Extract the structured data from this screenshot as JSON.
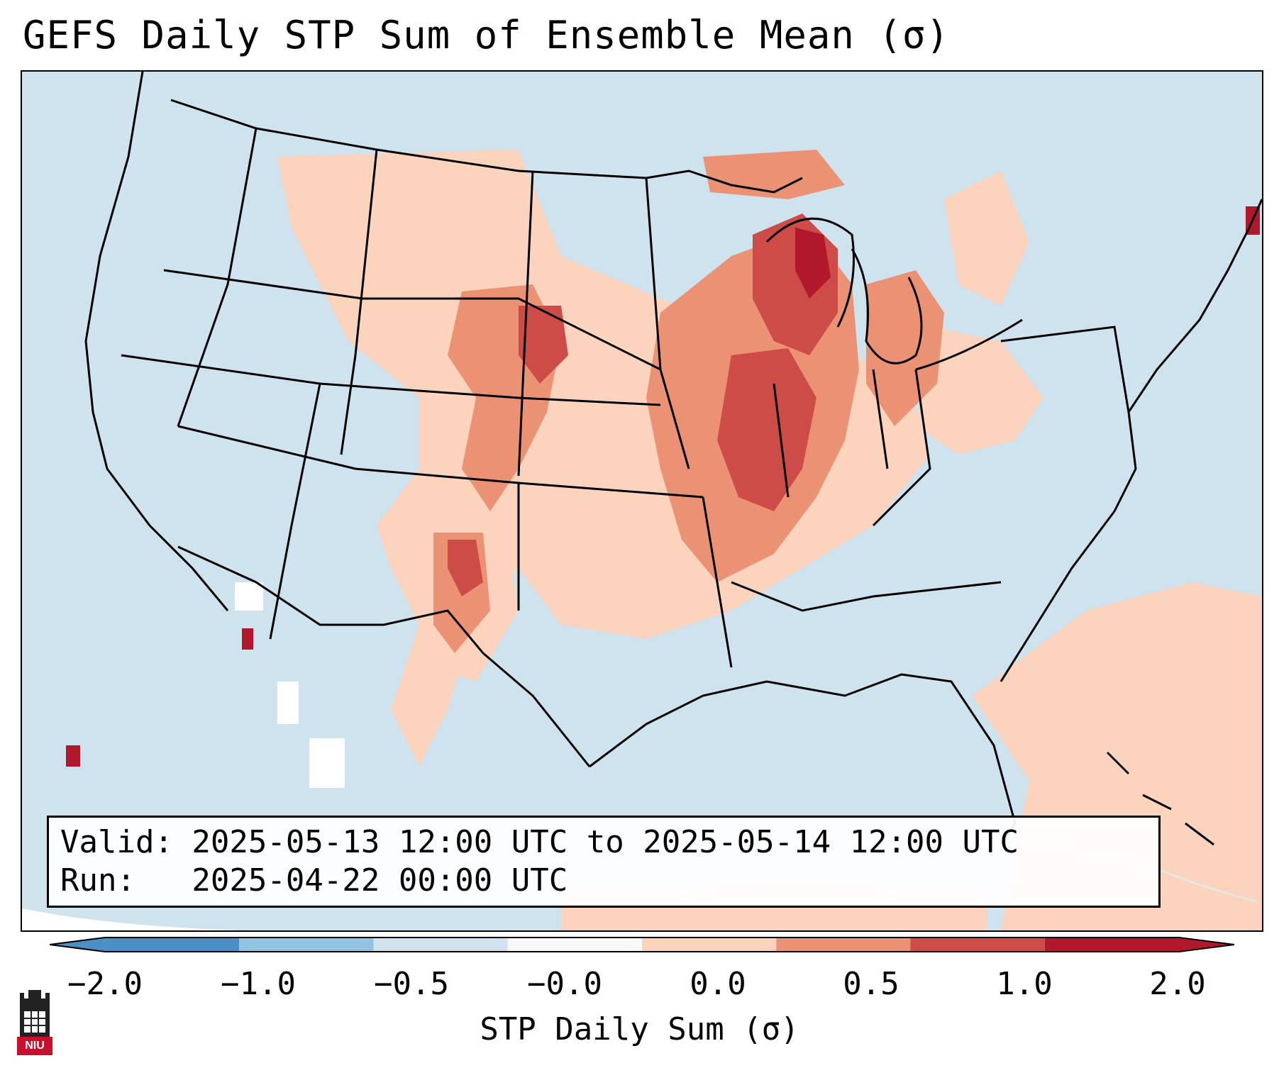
{
  "title": "GEFS Daily STP Sum of Ensemble Mean (σ)",
  "info": {
    "valid_line": "Valid: 2025-05-13 12:00 UTC to 2025-05-14 12:00 UTC",
    "run_line": "Run:   2025-04-22 00:00 UTC"
  },
  "colorbar": {
    "label": "STP Daily Sum (σ)",
    "ticks": [
      "−2.0",
      "−1.0",
      "−0.5",
      "−0.0",
      "0.0",
      "0.5",
      "1.0",
      "2.0"
    ],
    "colors": [
      "#4a90c4",
      "#92c3e0",
      "#d0e3ef",
      "#f8f8f8",
      "#fcd3bd",
      "#eb9274",
      "#cd4c47",
      "#b2182b"
    ]
  },
  "logo": {
    "text": "NIU"
  },
  "map": {
    "background_color": "#cfe3ef",
    "anomaly_regions": [
      {
        "region": "Upper Midwest / Wisconsin",
        "level": "high"
      },
      {
        "region": "Iowa / Illinois / Missouri",
        "level": "high"
      },
      {
        "region": "Western Great Plains / Colorado Front Range",
        "level": "moderate"
      },
      {
        "region": "New Mexico",
        "level": "high"
      },
      {
        "region": "Southern Michigan / Ohio Valley",
        "level": "moderate"
      },
      {
        "region": "Western Atlantic / Bahamas",
        "level": "low"
      }
    ]
  }
}
